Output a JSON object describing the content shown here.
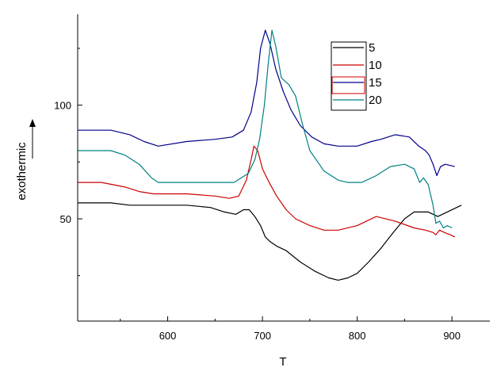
{
  "chart_data": {
    "type": "line",
    "title": "",
    "xlabel": "T",
    "ylabel": "exothermic",
    "xlim": [
      505,
      940
    ],
    "ylim": [
      5,
      140
    ],
    "x_ticks": [
      600,
      700,
      800,
      900
    ],
    "x_minor_ticks": [
      550,
      650,
      750,
      850
    ],
    "y_ticks": [
      50,
      100
    ],
    "y_minor_ticks": [
      25,
      75,
      125
    ],
    "grid": false,
    "legend_position": "top-right",
    "series": [
      {
        "name": "5",
        "color": "#000000",
        "points": [
          [
            505,
            57
          ],
          [
            540,
            57
          ],
          [
            560,
            56
          ],
          [
            580,
            56
          ],
          [
            620,
            56
          ],
          [
            645,
            55
          ],
          [
            660,
            53
          ],
          [
            672,
            52
          ],
          [
            680,
            54
          ],
          [
            686,
            54
          ],
          [
            692,
            51
          ],
          [
            698,
            47
          ],
          [
            703,
            42
          ],
          [
            708,
            40
          ],
          [
            715,
            38
          ],
          [
            725,
            36
          ],
          [
            740,
            31
          ],
          [
            755,
            27
          ],
          [
            770,
            24
          ],
          [
            780,
            23
          ],
          [
            790,
            24
          ],
          [
            800,
            26
          ],
          [
            812,
            31
          ],
          [
            825,
            37
          ],
          [
            838,
            44
          ],
          [
            850,
            50
          ],
          [
            860,
            53
          ],
          [
            875,
            53
          ],
          [
            885,
            51
          ],
          [
            895,
            53
          ],
          [
            910,
            56
          ]
        ]
      },
      {
        "name": "10",
        "color": "#cc0000",
        "points": [
          [
            505,
            66
          ],
          [
            530,
            66
          ],
          [
            555,
            64
          ],
          [
            570,
            62
          ],
          [
            585,
            61
          ],
          [
            620,
            61
          ],
          [
            650,
            60
          ],
          [
            665,
            59
          ],
          [
            675,
            60
          ],
          [
            683,
            67
          ],
          [
            688,
            76
          ],
          [
            691,
            82
          ],
          [
            695,
            80
          ],
          [
            700,
            72
          ],
          [
            707,
            66
          ],
          [
            715,
            60
          ],
          [
            725,
            54
          ],
          [
            735,
            50
          ],
          [
            750,
            47
          ],
          [
            765,
            45
          ],
          [
            780,
            45
          ],
          [
            800,
            47
          ],
          [
            820,
            51
          ],
          [
            840,
            49
          ],
          [
            860,
            46
          ],
          [
            872,
            45
          ],
          [
            880,
            44
          ],
          [
            883,
            43
          ],
          [
            887,
            45
          ],
          [
            892,
            44
          ],
          [
            898,
            43
          ],
          [
            903,
            42
          ]
        ]
      },
      {
        "name": "15",
        "color": "#00008b",
        "points": [
          [
            505,
            89
          ],
          [
            540,
            89
          ],
          [
            560,
            87
          ],
          [
            575,
            84
          ],
          [
            590,
            82
          ],
          [
            620,
            84
          ],
          [
            650,
            85
          ],
          [
            668,
            86
          ],
          [
            680,
            89
          ],
          [
            688,
            97
          ],
          [
            694,
            110
          ],
          [
            698,
            125
          ],
          [
            703,
            133
          ],
          [
            708,
            127
          ],
          [
            714,
            116
          ],
          [
            722,
            106
          ],
          [
            730,
            98
          ],
          [
            740,
            91
          ],
          [
            752,
            86
          ],
          [
            765,
            83
          ],
          [
            780,
            82
          ],
          [
            800,
            82
          ],
          [
            815,
            84
          ],
          [
            825,
            85
          ],
          [
            840,
            87
          ],
          [
            855,
            86
          ],
          [
            865,
            82
          ],
          [
            872,
            80
          ],
          [
            876,
            78
          ],
          [
            880,
            74
          ],
          [
            884,
            69
          ],
          [
            888,
            73
          ],
          [
            893,
            74
          ],
          [
            903,
            73
          ]
        ]
      },
      {
        "name": "20",
        "color": "#008080",
        "points": [
          [
            505,
            80
          ],
          [
            540,
            80
          ],
          [
            555,
            78
          ],
          [
            570,
            74
          ],
          [
            583,
            68
          ],
          [
            590,
            66
          ],
          [
            620,
            66
          ],
          [
            650,
            66
          ],
          [
            670,
            66
          ],
          [
            685,
            70
          ],
          [
            692,
            76
          ],
          [
            697,
            85
          ],
          [
            702,
            100
          ],
          [
            706,
            118
          ],
          [
            710,
            133
          ],
          [
            714,
            126
          ],
          [
            720,
            112
          ],
          [
            728,
            109
          ],
          [
            735,
            104
          ],
          [
            742,
            92
          ],
          [
            750,
            80
          ],
          [
            765,
            71
          ],
          [
            780,
            67
          ],
          [
            790,
            66
          ],
          [
            805,
            66
          ],
          [
            820,
            69
          ],
          [
            835,
            73
          ],
          [
            850,
            74
          ],
          [
            860,
            72
          ],
          [
            866,
            66
          ],
          [
            870,
            68
          ],
          [
            875,
            65
          ],
          [
            880,
            56
          ],
          [
            883,
            48
          ],
          [
            887,
            49
          ],
          [
            891,
            46
          ],
          [
            895,
            47
          ],
          [
            900,
            46
          ]
        ]
      }
    ]
  }
}
